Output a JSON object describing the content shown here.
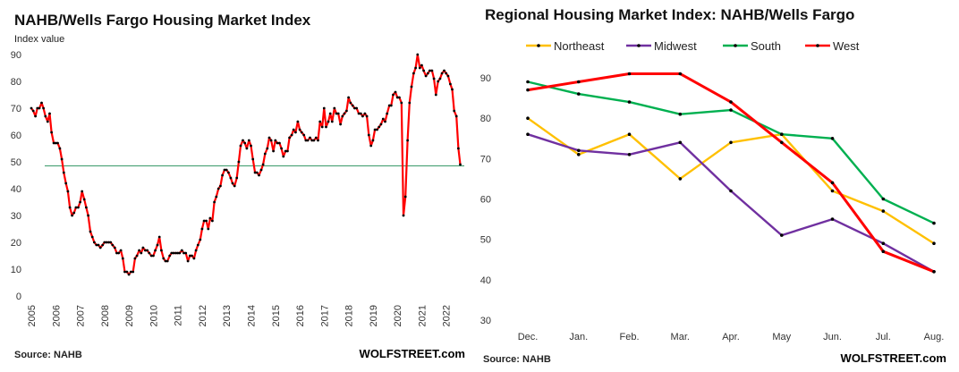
{
  "chart_data": [
    {
      "type": "line",
      "title": "NAHB/Wells Fargo Housing Market Index",
      "ylabel": "Index value",
      "ylim": [
        0,
        90
      ],
      "yticks": [
        "0",
        "10",
        "20",
        "30",
        "40",
        "50",
        "60",
        "70",
        "80",
        "90"
      ],
      "xlim": [
        2005,
        2022.67
      ],
      "xticks": [
        "2005",
        "2006",
        "2007",
        "2008",
        "2009",
        "2010",
        "2011",
        "2012",
        "2013",
        "2014",
        "2015",
        "2016",
        "2017",
        "2018",
        "2019",
        "2020",
        "2021",
        "2022"
      ],
      "reference_line": 48.5,
      "grid": false,
      "source": "Source: NAHB",
      "credit": "WOLFSTREET.com",
      "colors": {
        "line": "#ff0000",
        "marker": "#000000",
        "reference": "#3a9a6a"
      },
      "series": [
        {
          "x": [
            2005.0,
            2005.08,
            2005.17,
            2005.25,
            2005.33,
            2005.42,
            2005.5,
            2005.58,
            2005.67,
            2005.75,
            2005.83,
            2005.92,
            2006.0,
            2006.08,
            2006.17,
            2006.25,
            2006.33,
            2006.42,
            2006.5,
            2006.58,
            2006.67,
            2006.75,
            2006.83,
            2006.92,
            2007.0,
            2007.08,
            2007.17,
            2007.25,
            2007.33,
            2007.42,
            2007.5,
            2007.58,
            2007.67,
            2007.75,
            2007.83,
            2007.92,
            2008.0,
            2008.08,
            2008.17,
            2008.25,
            2008.33,
            2008.42,
            2008.5,
            2008.58,
            2008.67,
            2008.75,
            2008.83,
            2008.92,
            2009.0,
            2009.08,
            2009.17,
            2009.25,
            2009.33,
            2009.42,
            2009.5,
            2009.58,
            2009.67,
            2009.75,
            2009.83,
            2009.92,
            2010.0,
            2010.08,
            2010.17,
            2010.25,
            2010.33,
            2010.42,
            2010.5,
            2010.58,
            2010.67,
            2010.75,
            2010.83,
            2010.92,
            2011.0,
            2011.08,
            2011.17,
            2011.25,
            2011.33,
            2011.42,
            2011.5,
            2011.58,
            2011.67,
            2011.75,
            2011.83,
            2011.92,
            2012.0,
            2012.08,
            2012.17,
            2012.25,
            2012.33,
            2012.42,
            2012.5,
            2012.58,
            2012.67,
            2012.75,
            2012.83,
            2012.92,
            2013.0,
            2013.08,
            2013.17,
            2013.25,
            2013.33,
            2013.42,
            2013.5,
            2013.58,
            2013.67,
            2013.75,
            2013.83,
            2013.92,
            2014.0,
            2014.08,
            2014.17,
            2014.25,
            2014.33,
            2014.42,
            2014.5,
            2014.58,
            2014.67,
            2014.75,
            2014.83,
            2014.92,
            2015.0,
            2015.08,
            2015.17,
            2015.25,
            2015.33,
            2015.42,
            2015.5,
            2015.58,
            2015.67,
            2015.75,
            2015.83,
            2015.92,
            2016.0,
            2016.08,
            2016.17,
            2016.25,
            2016.33,
            2016.42,
            2016.5,
            2016.58,
            2016.67,
            2016.75,
            2016.83,
            2016.92,
            2017.0,
            2017.08,
            2017.17,
            2017.25,
            2017.33,
            2017.42,
            2017.5,
            2017.58,
            2017.67,
            2017.75,
            2017.83,
            2017.92,
            2018.0,
            2018.08,
            2018.17,
            2018.25,
            2018.33,
            2018.42,
            2018.5,
            2018.58,
            2018.67,
            2018.75,
            2018.83,
            2018.92,
            2019.0,
            2019.08,
            2019.17,
            2019.25,
            2019.33,
            2019.42,
            2019.5,
            2019.58,
            2019.67,
            2019.75,
            2019.83,
            2019.92,
            2020.0,
            2020.08,
            2020.17,
            2020.25,
            2020.33,
            2020.42,
            2020.5,
            2020.58,
            2020.67,
            2020.75,
            2020.83,
            2020.92,
            2021.0,
            2021.08,
            2021.17,
            2021.25,
            2021.33,
            2021.42,
            2021.5,
            2021.58,
            2021.67,
            2021.75,
            2021.83,
            2021.92,
            2022.0,
            2022.08,
            2022.17,
            2022.25,
            2022.33,
            2022.42,
            2022.5,
            2022.58
          ],
          "y": [
            70,
            69,
            67,
            70,
            70,
            72,
            70,
            67,
            65,
            68,
            61,
            57,
            57,
            57,
            55,
            51,
            46,
            42,
            39,
            33,
            30,
            31,
            33,
            33,
            35,
            39,
            36,
            33,
            30,
            24,
            22,
            20,
            19,
            19,
            18,
            19,
            20,
            20,
            20,
            20,
            19,
            18,
            16,
            16,
            17,
            14,
            9,
            9,
            8,
            9,
            9,
            14,
            15,
            17,
            16,
            18,
            17,
            17,
            16,
            15,
            15,
            17,
            19,
            22,
            17,
            14,
            13,
            13,
            15,
            16,
            16,
            16,
            16,
            16,
            17,
            16,
            16,
            13,
            15,
            15,
            14,
            17,
            19,
            21,
            25,
            28,
            28,
            25,
            29,
            28,
            35,
            37,
            40,
            41,
            45,
            47,
            47,
            46,
            44,
            42,
            41,
            44,
            50,
            56,
            58,
            57,
            55,
            58,
            56,
            51,
            46,
            46,
            45,
            47,
            49,
            53,
            55,
            59,
            58,
            54,
            58,
            57,
            57,
            55,
            52,
            54,
            54,
            59,
            60,
            62,
            61,
            65,
            62,
            61,
            60,
            58,
            58,
            59,
            58,
            58,
            59,
            58,
            65,
            63,
            70,
            63,
            65,
            68,
            65,
            70,
            68,
            68,
            64,
            67,
            68,
            69,
            74,
            72,
            71,
            70,
            70,
            68,
            68,
            67,
            68,
            67,
            60,
            56,
            58,
            62,
            62,
            63,
            64,
            66,
            65,
            68,
            71,
            71,
            75,
            76,
            74,
            74,
            72,
            30,
            37,
            58,
            72,
            78,
            83,
            85,
            90,
            85,
            86,
            84,
            82,
            83,
            84,
            84,
            81,
            75,
            80,
            81,
            83,
            84,
            83,
            82,
            79,
            77,
            69,
            67,
            55,
            49
          ]
        }
      ]
    },
    {
      "type": "line",
      "title": "Regional Housing Market Index: NAHB/Wells Fargo",
      "categories": [
        "Dec.",
        "Jan.",
        "Feb.",
        "Mar.",
        "Apr.",
        "May",
        "Jun.",
        "Jul.",
        "Aug."
      ],
      "ylim": [
        30,
        90
      ],
      "yticks": [
        "30",
        "40",
        "50",
        "60",
        "70",
        "80",
        "90"
      ],
      "grid": false,
      "legend": "top",
      "source": "Source: NAHB",
      "credit": "WOLFSTREET.com",
      "series": [
        {
          "name": "Northeast",
          "color": "#ffc000",
          "values": [
            80,
            71,
            76,
            65,
            74,
            76,
            62,
            57,
            49
          ]
        },
        {
          "name": "Midwest",
          "color": "#7030a0",
          "values": [
            76,
            72,
            71,
            74,
            62,
            51,
            55,
            49,
            42
          ]
        },
        {
          "name": "South",
          "color": "#00b050",
          "values": [
            89,
            86,
            84,
            81,
            82,
            76,
            75,
            60,
            54
          ]
        },
        {
          "name": "West",
          "color": "#ff0000",
          "values": [
            87,
            89,
            91,
            91,
            84,
            74,
            64,
            47,
            42
          ]
        }
      ]
    }
  ]
}
